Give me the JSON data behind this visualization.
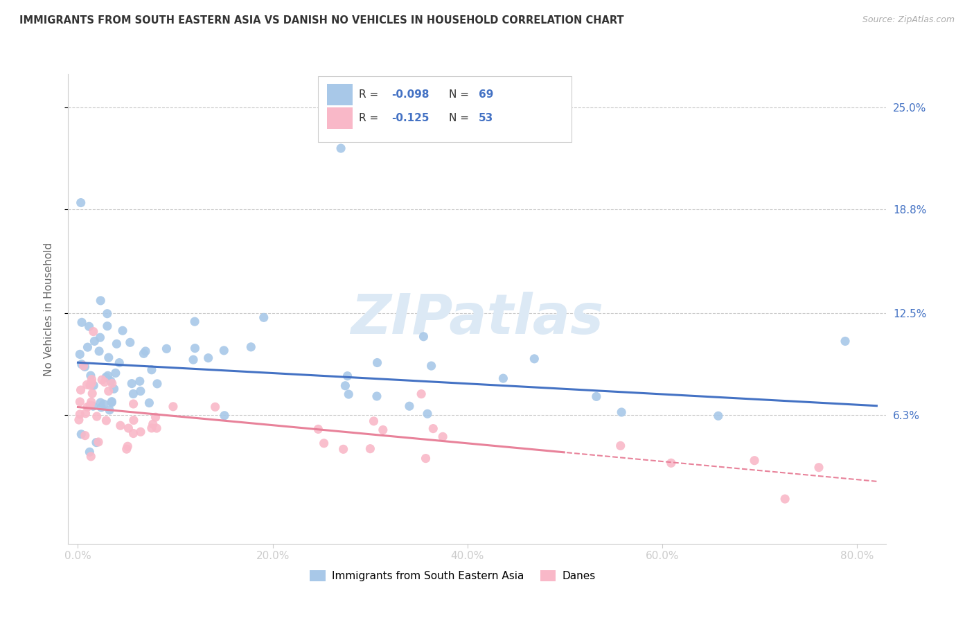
{
  "title": "IMMIGRANTS FROM SOUTH EASTERN ASIA VS DANISH NO VEHICLES IN HOUSEHOLD CORRELATION CHART",
  "source": "Source: ZipAtlas.com",
  "ylabel": "No Vehicles in Household",
  "x_tick_labels": [
    "0.0%",
    "20.0%",
    "40.0%",
    "60.0%",
    "80.0%"
  ],
  "x_tick_values": [
    0.0,
    20.0,
    40.0,
    60.0,
    80.0
  ],
  "y_tick_labels": [
    "6.3%",
    "12.5%",
    "18.8%",
    "25.0%"
  ],
  "y_tick_values": [
    6.3,
    12.5,
    18.8,
    25.0
  ],
  "xlim": [
    -1,
    83
  ],
  "ylim": [
    -1.5,
    27
  ],
  "series1_color": "#a8c8e8",
  "series2_color": "#f9b8c8",
  "series1_label": "Immigrants from South Eastern Asia",
  "series2_label": "Danes",
  "series1_R": "-0.098",
  "series1_N": "69",
  "series2_R": "-0.125",
  "series2_N": "53",
  "trend1_color": "#4472c4",
  "trend2_color": "#e8829a",
  "legend_R_color": "#4472c4",
  "watermark_color": "#dce9f5",
  "background_color": "#ffffff",
  "trend1_intercept": 9.5,
  "trend1_slope": -0.032,
  "trend2_intercept": 6.8,
  "trend2_slope": -0.055
}
